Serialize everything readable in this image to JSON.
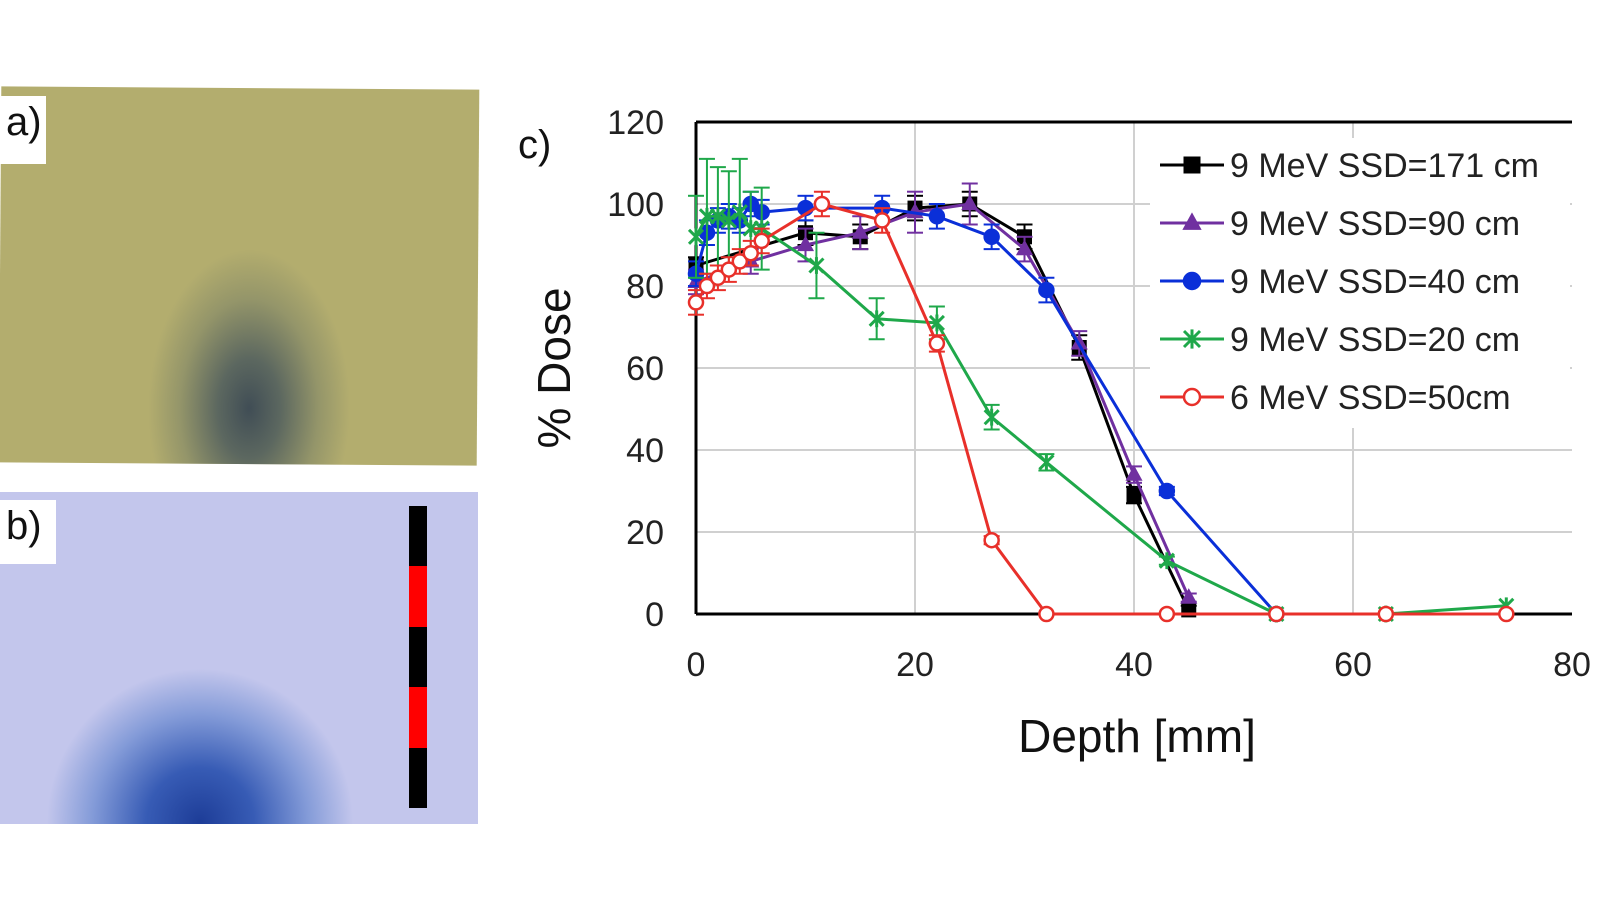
{
  "panels": {
    "a": {
      "label": "a)"
    },
    "b": {
      "label": "b)"
    },
    "c": {
      "label": "c)"
    }
  },
  "colors": {
    "film_a": "#b3ad6e",
    "film_b": "#c3c6ec",
    "scale_black": "#000000",
    "scale_red": "#ff0000"
  },
  "chart_data": {
    "type": "line",
    "title": "",
    "xlabel": "Depth [mm]",
    "ylabel": "% Dose",
    "xlim": [
      0,
      80
    ],
    "ylim": [
      0,
      120
    ],
    "xticks": [
      "0",
      "20",
      "40",
      "60",
      "80"
    ],
    "yticks": [
      "0",
      "20",
      "40",
      "60",
      "80",
      "100",
      "120"
    ],
    "grid": true,
    "legend_position": "top-right",
    "series": [
      {
        "name": "9 MeV SSD=171 cm",
        "color": "#000000",
        "marker": "square",
        "filled": true,
        "x": [
          0,
          10,
          15,
          20,
          25,
          30,
          35,
          40,
          45
        ],
        "y": [
          85,
          93,
          92,
          99,
          100,
          92,
          65,
          29,
          1
        ],
        "err": [
          2,
          3,
          3,
          3,
          3,
          3,
          3,
          2,
          1
        ]
      },
      {
        "name": "9 MeV SSD=90 cm",
        "color": "#7030a0",
        "marker": "triangle",
        "filled": true,
        "x": [
          0,
          5,
          10,
          15,
          20,
          25,
          30,
          35,
          40,
          45
        ],
        "y": [
          81,
          86,
          90,
          93,
          98,
          100,
          89,
          66,
          34,
          4
        ],
        "err": [
          3,
          3,
          4,
          4,
          5,
          5,
          3,
          3,
          2,
          1
        ]
      },
      {
        "name": "9 MeV SSD=40 cm",
        "color": "#0a2fd8",
        "marker": "circle",
        "filled": true,
        "x": [
          0,
          1,
          2,
          3,
          4,
          5,
          6,
          10,
          17,
          22,
          27,
          32,
          43,
          53
        ],
        "y": [
          83,
          93,
          96,
          97,
          96,
          100,
          98,
          99,
          99,
          97,
          92,
          79,
          30,
          0
        ],
        "err": [
          3,
          3,
          3,
          3,
          3,
          3,
          3,
          3,
          3,
          3,
          3,
          3,
          1,
          0
        ]
      },
      {
        "name": "9 MeV SSD=20 cm",
        "color": "#1fa84a",
        "marker": "star",
        "filled": false,
        "x": [
          0,
          1,
          2,
          3,
          4,
          5,
          6,
          11,
          16.5,
          22,
          27,
          32,
          43,
          53,
          63,
          74
        ],
        "y": [
          92,
          97,
          97,
          96,
          98,
          94,
          94,
          85,
          72,
          71,
          48,
          37,
          13,
          0,
          0,
          2
        ],
        "err": [
          10,
          14,
          12,
          12,
          13,
          9,
          10,
          8,
          5,
          4,
          3,
          2,
          1,
          0,
          0,
          0
        ]
      },
      {
        "name": "6 MeV SSD=50cm",
        "color": "#e8302a",
        "marker": "circle",
        "filled": false,
        "x": [
          0,
          1,
          2,
          3,
          4,
          5,
          6,
          11.5,
          17,
          22,
          27,
          32,
          43,
          53,
          63,
          74
        ],
        "y": [
          76,
          80,
          82,
          84,
          86,
          88,
          91,
          100,
          96,
          66,
          18,
          0,
          0,
          0,
          0,
          0
        ],
        "err": [
          3,
          3,
          3,
          3,
          3,
          3,
          3,
          3,
          3,
          2,
          1,
          0,
          0,
          0,
          0,
          0
        ]
      }
    ]
  }
}
